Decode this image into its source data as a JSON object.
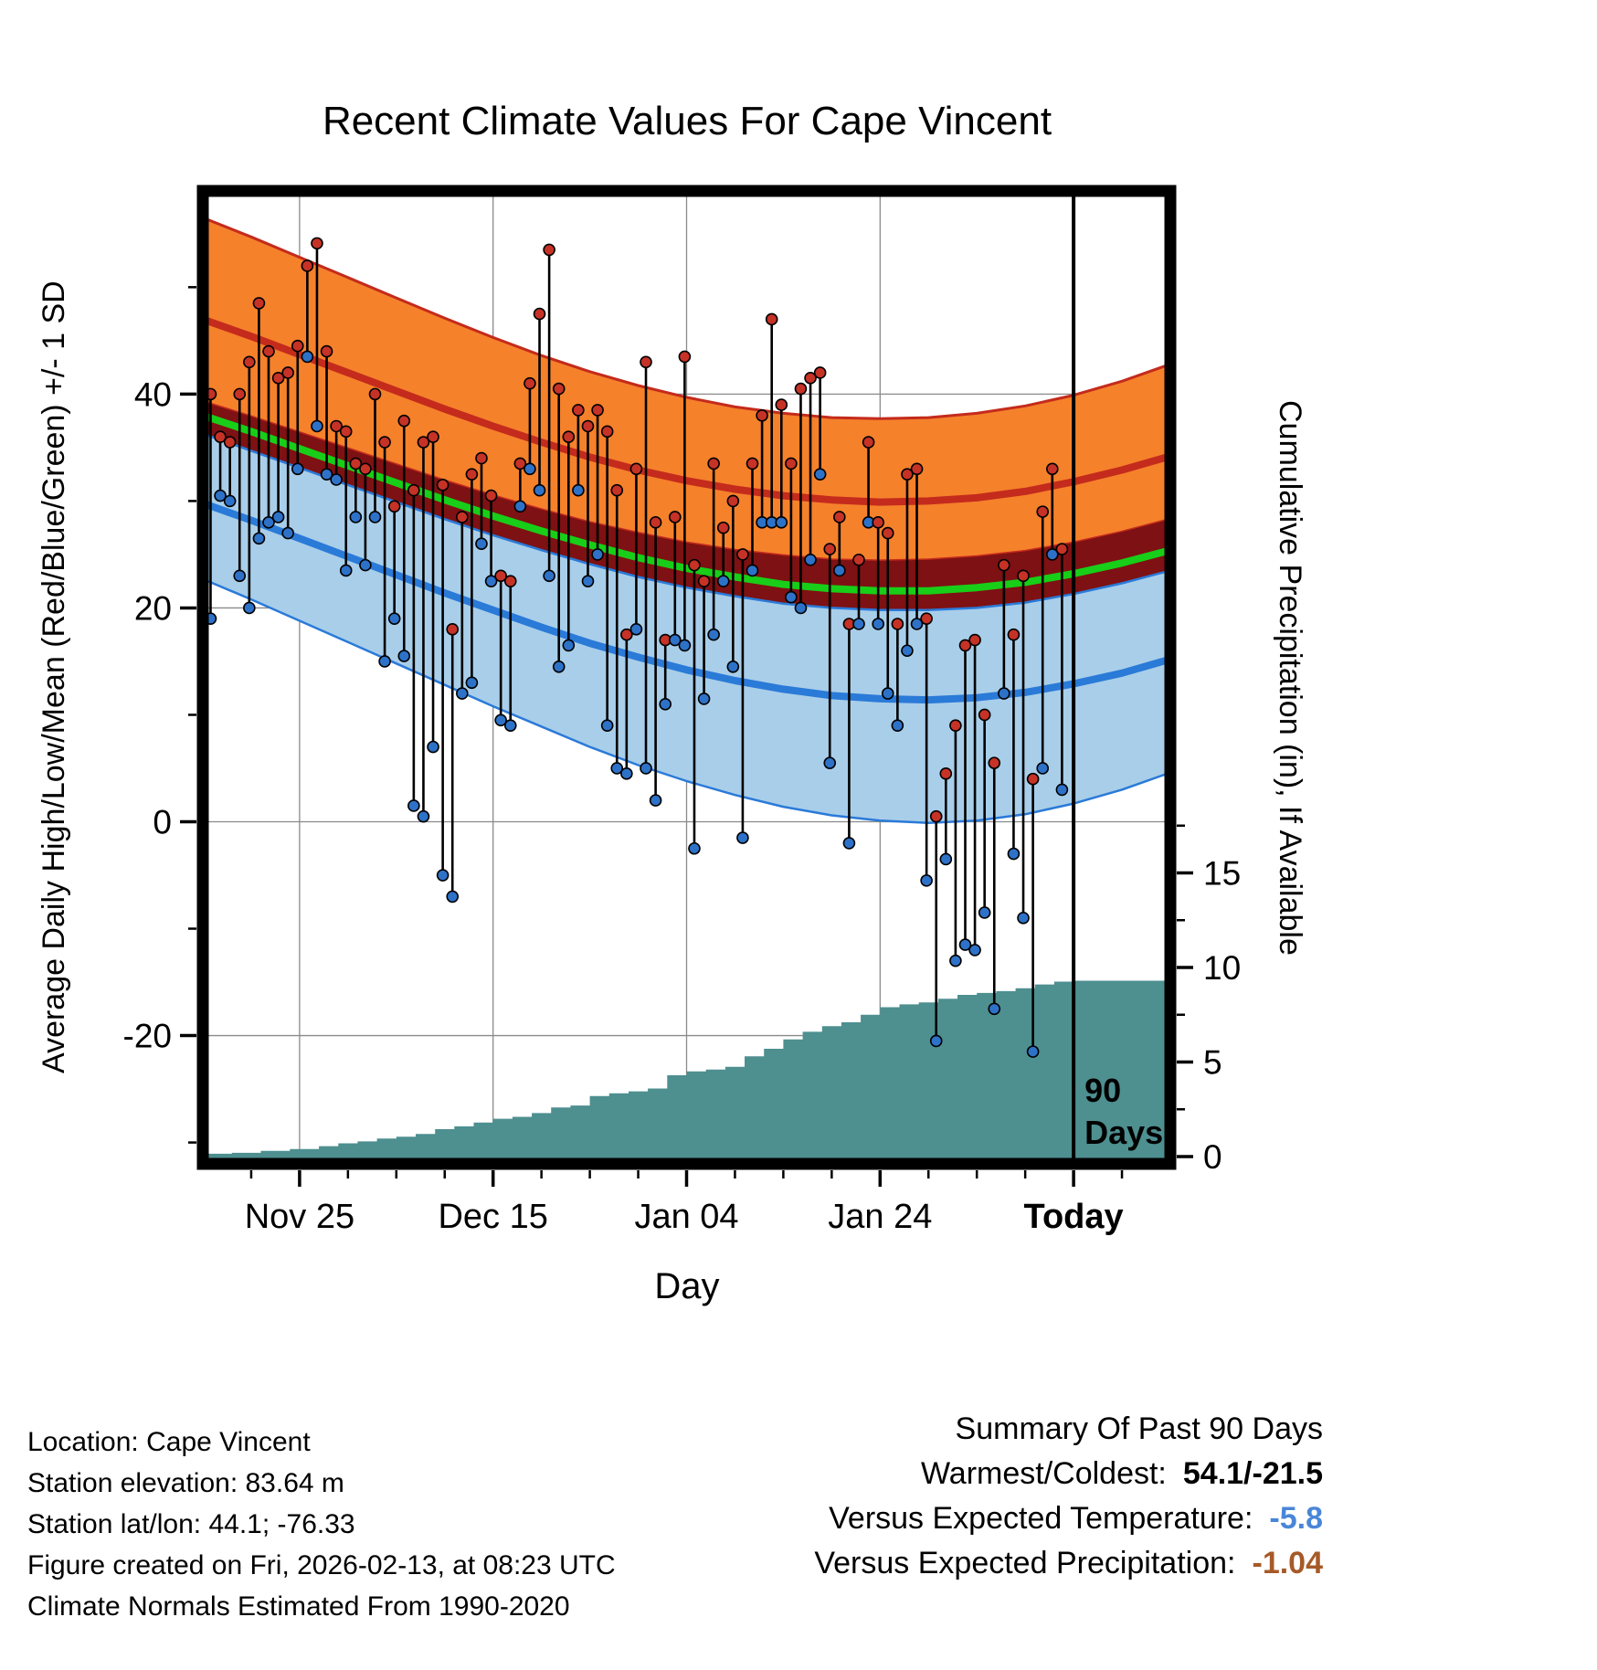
{
  "title": "Recent Climate Values For Cape Vincent",
  "axes": {
    "left_label": "Average Daily High/Low/Mean (Red/Blue/Green) +/- 1 SD",
    "right_label": "Cumulative Precipitation (in), If Available",
    "x_label": "Day",
    "x_ticks": [
      {
        "d": 10,
        "label": "Nov 25",
        "bold": false
      },
      {
        "d": 30,
        "label": "Dec 15",
        "bold": false
      },
      {
        "d": 50,
        "label": "Jan 04",
        "bold": false
      },
      {
        "d": 70,
        "label": "Jan 24",
        "bold": false
      },
      {
        "d": 90,
        "label": "Today",
        "bold": true
      }
    ],
    "y_ticks_temp": [
      40,
      20,
      0,
      -20
    ],
    "y_ticks_temp_minor": [
      50,
      30,
      10,
      -10,
      -30
    ],
    "y_ticks_precip": [
      15,
      10,
      5,
      0
    ],
    "y_ticks_precip_minor": [
      17.5,
      12.5,
      7.5,
      2.5
    ]
  },
  "annotations": {
    "period_line1": "90",
    "period_line2": "Days"
  },
  "chart_data": {
    "type": "line",
    "title": "Recent Climate Values For Cape Vincent",
    "xlabel": "Day",
    "ylabel_left": "Average Daily High/Low/Mean (Red/Blue/Green) +/- 1 SD",
    "ylabel_right": "Cumulative Precipitation (in), If Available",
    "x_tick_labels": [
      "Nov 25",
      "Dec 15",
      "Jan 04",
      "Jan 24",
      "Today"
    ],
    "temp_axis_ticks": [
      40,
      20,
      0,
      -20
    ],
    "precip_axis_ticks": [
      15,
      10,
      5,
      0
    ],
    "normals": {
      "days": [
        0,
        5,
        10,
        15,
        20,
        25,
        30,
        35,
        40,
        45,
        50,
        55,
        60,
        65,
        70,
        75,
        80,
        85,
        90,
        95,
        100
      ],
      "high_upper": [
        56.5,
        54.7,
        52.8,
        50.9,
        49.0,
        47.1,
        45.3,
        43.6,
        42.1,
        40.8,
        39.7,
        38.8,
        38.2,
        37.8,
        37.7,
        37.8,
        38.2,
        38.9,
        39.9,
        41.2,
        42.8
      ],
      "high_mean": [
        47.0,
        45.4,
        43.7,
        42.0,
        40.3,
        38.6,
        37.0,
        35.5,
        34.1,
        32.9,
        31.9,
        31.1,
        30.5,
        30.1,
        29.9,
        30.0,
        30.3,
        30.9,
        31.8,
        32.9,
        34.2
      ],
      "high_lower": [
        39.3,
        37.9,
        36.4,
        34.9,
        33.4,
        31.9,
        30.5,
        29.2,
        28.0,
        27.0,
        26.1,
        25.4,
        24.9,
        24.5,
        24.4,
        24.5,
        24.8,
        25.3,
        26.1,
        27.1,
        28.3
      ],
      "mean": [
        38.0,
        36.5,
        34.9,
        33.3,
        31.7,
        30.1,
        28.6,
        27.2,
        25.9,
        24.7,
        23.7,
        22.9,
        22.2,
        21.8,
        21.6,
        21.6,
        21.9,
        22.4,
        23.2,
        24.2,
        25.4
      ],
      "low_upper": [
        36.3,
        34.7,
        33.1,
        31.5,
        29.9,
        28.3,
        26.8,
        25.4,
        24.1,
        22.9,
        21.9,
        21.1,
        20.4,
        20.0,
        19.8,
        19.8,
        20.0,
        20.5,
        21.3,
        22.3,
        23.5
      ],
      "low_mean": [
        29.8,
        28.2,
        26.5,
        24.8,
        23.1,
        21.4,
        19.8,
        18.2,
        16.7,
        15.4,
        14.2,
        13.2,
        12.4,
        11.8,
        11.5,
        11.4,
        11.6,
        12.1,
        12.9,
        13.9,
        15.2
      ],
      "low_lower": [
        22.7,
        20.8,
        18.8,
        16.8,
        14.8,
        12.8,
        10.8,
        8.9,
        7.0,
        5.3,
        3.8,
        2.5,
        1.4,
        0.6,
        0.1,
        -0.1,
        0.1,
        0.7,
        1.7,
        3.0,
        4.6
      ]
    },
    "daily": {
      "highs": [
        40,
        36,
        35.5,
        40,
        43,
        48.5,
        44,
        41.5,
        42,
        44.5,
        52,
        54.1,
        44,
        37,
        36.5,
        33.5,
        33,
        40,
        35.5,
        29.5,
        37.5,
        31,
        35.5,
        36,
        31.5,
        18,
        28.5,
        32.5,
        34,
        30.5,
        23,
        22.5,
        33.5,
        41,
        47.5,
        53.5,
        40.5,
        36,
        38.5,
        37,
        38.5,
        36.5,
        31,
        17.5,
        33,
        43,
        28,
        17,
        28.5,
        43.5,
        24,
        22.5,
        33.5,
        27.5,
        30,
        25,
        33.5,
        38,
        47,
        39,
        33.5,
        40.5,
        41.5,
        42,
        25.5,
        28.5,
        18.5,
        24.5,
        35.5,
        28,
        27,
        18.5,
        32.5,
        33,
        19,
        0.5,
        4.5,
        9,
        16.5,
        17,
        10,
        5.5,
        24,
        17.5,
        23,
        4,
        29,
        33,
        25.5
      ],
      "lows": [
        19,
        30.5,
        30,
        23,
        20,
        26.5,
        28,
        28.5,
        27,
        33,
        43.5,
        37,
        32.5,
        32,
        23.5,
        28.5,
        24,
        28.5,
        15,
        19,
        15.5,
        1.5,
        0.5,
        7,
        -5,
        -7,
        12,
        13,
        26,
        22.5,
        9.5,
        9,
        29.5,
        33,
        31,
        23,
        14.5,
        16.5,
        31,
        22.5,
        25,
        9,
        5,
        4.5,
        18,
        5,
        2,
        11,
        17,
        16.5,
        -2.5,
        11.5,
        17.5,
        22.5,
        14.5,
        -1.5,
        23.5,
        28,
        28,
        28,
        21,
        20,
        24.5,
        32.5,
        5.5,
        23.5,
        -2,
        18.5,
        28,
        18.5,
        12,
        9,
        16,
        18.5,
        -5.5,
        -20.5,
        -3.5,
        -13,
        -11.5,
        -12,
        -8.5,
        -17.5,
        12,
        -3,
        -9,
        -21.5,
        5,
        25,
        3
      ]
    },
    "cumulative_precip": {
      "days": [
        0,
        3,
        6,
        9,
        12,
        14,
        16,
        18,
        20,
        22,
        24,
        26,
        28,
        30,
        32,
        34,
        36,
        38,
        40,
        42,
        44,
        46,
        48,
        50,
        52,
        54,
        56,
        58,
        60,
        62,
        64,
        66,
        68,
        70,
        72,
        74,
        76,
        78,
        80,
        82,
        84,
        86,
        88,
        90,
        100
      ],
      "values": [
        0.15,
        0.2,
        0.3,
        0.4,
        0.55,
        0.7,
        0.8,
        0.95,
        1.05,
        1.2,
        1.45,
        1.6,
        1.8,
        2.0,
        2.1,
        2.3,
        2.6,
        2.7,
        3.2,
        3.35,
        3.45,
        3.6,
        4.3,
        4.5,
        4.6,
        4.75,
        5.3,
        5.7,
        6.2,
        6.6,
        6.9,
        7.1,
        7.5,
        7.9,
        8.05,
        8.15,
        8.35,
        8.55,
        8.65,
        8.75,
        8.9,
        9.1,
        9.25,
        9.3,
        9.3
      ]
    },
    "summary": {
      "warmest": 54.1,
      "coldest": -21.5,
      "versus_expected_temperature": -5.8,
      "versus_expected_precipitation": -1.04
    },
    "period_marker": {
      "day": 90,
      "label": "90 Days"
    }
  },
  "footer_left": {
    "lines": [
      "Location: Cape Vincent",
      "Station elevation: 83.64 m",
      "Station lat/lon: 44.1; -76.33",
      "Figure created on Fri, 2026-02-13, at 08:23 UTC",
      "Climate Normals Estimated From 1990-2020"
    ]
  },
  "summary": {
    "heading": "Summary Of Past 90 Days",
    "warmest_coldest_label": "Warmest/Coldest:",
    "warmest_coldest_value": "54.1/-21.5",
    "vs_temp_label": "Versus Expected Temperature:",
    "vs_temp_value": "-5.8",
    "vs_precip_label": "Versus Expected Precipitation:",
    "vs_precip_value": "-1.04"
  },
  "colors": {
    "orange_band": "#F5812B",
    "red_line": "#C42B1C",
    "maroon_band": "#7E1113",
    "green_line": "#18CE18",
    "blue_band": "#A9CEE9",
    "blue_line": "#2A7AD8",
    "precip_fill": "#4E8F90",
    "high_dot": "#C63226",
    "low_dot": "#2D72C8",
    "grid": "#8A8A8A",
    "summary_temp_color": "#4A86D8",
    "summary_precip_color": "#A65A28"
  }
}
